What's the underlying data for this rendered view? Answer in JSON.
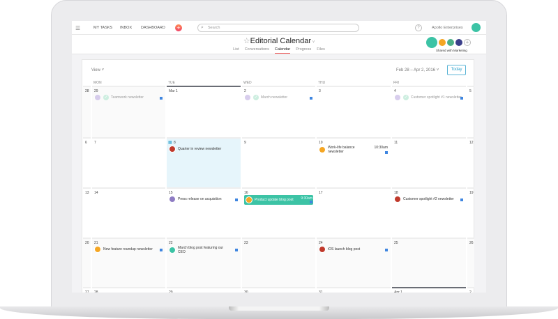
{
  "topbar": {
    "my_tasks": "MY TASKS",
    "inbox": "INBOX",
    "dashboard": "DASHBOARD",
    "search_placeholder": "Search",
    "help": "?",
    "org": "Apollo Enterprises"
  },
  "project": {
    "title": "Editorial Calendar",
    "tabs": [
      {
        "label": "List"
      },
      {
        "label": "Conversations"
      },
      {
        "label": "Calendar",
        "active": true
      },
      {
        "label": "Progress"
      },
      {
        "label": "Files"
      }
    ],
    "shared_label": "Shared with Marketing",
    "member_colors": [
      "#3cc3a5",
      "#f5a623",
      "#4caf87",
      "#3b3f8a"
    ]
  },
  "calendar": {
    "view_label": "View ˅",
    "range_label": "Feb 28 – Apr 2, 2016 ˅",
    "today_label": "Today",
    "day_headers": [
      "",
      "MON",
      "TUE",
      "WED",
      "THU",
      "FRI",
      ""
    ],
    "weeks": [
      {
        "days": [
          "28",
          "29",
          "Mar 1",
          "2",
          "3",
          "4",
          "5"
        ],
        "events": [
          {
            "col": 1,
            "text": "Teamwork newsletter",
            "done": true,
            "color": "#b9a7e0"
          },
          {
            "col": 3,
            "text": "March newsletter",
            "done": true,
            "color": "#b9a7e0"
          },
          {
            "col": 5,
            "text": "Customer spotlight #1 newsletter",
            "done": true,
            "color": "#b9a7e0"
          }
        ]
      },
      {
        "days": [
          "6",
          "7",
          "8",
          "9",
          "10",
          "11",
          "12"
        ],
        "events": [
          {
            "col": 2,
            "text": "Quarter in review newsletter",
            "color": "#c0392b",
            "nosq": true
          },
          {
            "col": 4,
            "text": "Work-life balance newsletter",
            "color": "#f5a623",
            "time": "10:30am"
          }
        ]
      },
      {
        "days": [
          "13",
          "14",
          "15",
          "16",
          "17",
          "18",
          "19"
        ],
        "events": [
          {
            "col": 2,
            "text": "Press release on acquisition",
            "color": "#8e7cc3"
          },
          {
            "col": 3,
            "text": "Product update blog post",
            "color": "#f5a623",
            "time": "9:30am",
            "green": true
          },
          {
            "col": 5,
            "text": "Customer spotlight #2 newsletter",
            "color": "#c0392b"
          }
        ]
      },
      {
        "days": [
          "20",
          "21",
          "22",
          "23",
          "24",
          "25",
          "26"
        ],
        "events": [
          {
            "col": 1,
            "text": "New feature roundup newsletter",
            "color": "#f5a623"
          },
          {
            "col": 2,
            "text": "March blog post featuring our CEO",
            "color": "#3cc3a5"
          },
          {
            "col": 4,
            "text": "iOS launch blog post",
            "color": "#c0392b"
          }
        ]
      },
      {
        "days": [
          "27",
          "28",
          "29",
          "30",
          "31",
          "Apr 1",
          "2"
        ],
        "events": []
      }
    ]
  },
  "colors": {
    "accent": "#f05d5d",
    "today_blue": "#2fa2cd",
    "highlight": "#e6f5fb",
    "task_square": "#3f86e0",
    "green_event": "#3cc3a5"
  }
}
